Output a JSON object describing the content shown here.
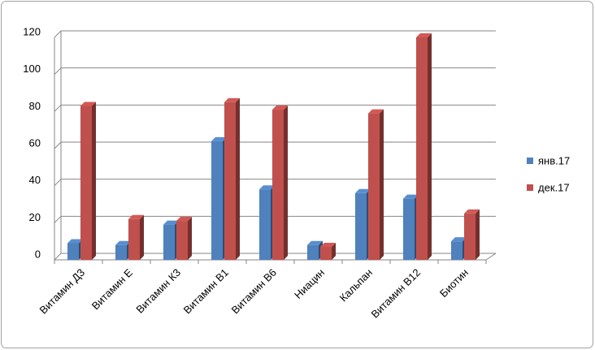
{
  "chart_data": {
    "type": "bar3d",
    "categories": [
      "Витамин  Д3",
      "Витамин Е",
      "Витамин К3",
      "Витамин В1",
      "Витамин В6",
      "Ниацин",
      "Кальпан",
      "Витамин В12",
      "Биотин"
    ],
    "series": [
      {
        "name": "янв.17",
        "color": "#4f81bd",
        "values": [
          9,
          8,
          19,
          64,
          38,
          8,
          36,
          33,
          10
        ]
      },
      {
        "name": "дек.17",
        "color": "#c0504d",
        "values": [
          83,
          22,
          21,
          85,
          81,
          7,
          79,
          120,
          25
        ]
      }
    ],
    "ylim": [
      0,
      120
    ],
    "yticks": [
      0,
      20,
      40,
      60,
      80,
      100,
      120
    ],
    "grid": true,
    "legend": "right"
  }
}
